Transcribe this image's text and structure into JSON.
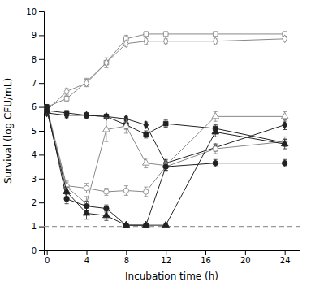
{
  "chart_data": {
    "type": "line",
    "xlabel": "Incubation time (h)",
    "ylabel": "Survival (log CFU/mL)",
    "xlim": [
      -0.3,
      25.5
    ],
    "ylim": [
      0,
      10
    ],
    "xticks": [
      0,
      4,
      8,
      12,
      16,
      20,
      24
    ],
    "yticks": [
      0,
      1,
      2,
      3,
      4,
      5,
      6,
      7,
      8,
      9,
      10
    ],
    "grid": false,
    "detection_limit": 1.0,
    "x": [
      0,
      2,
      4,
      6,
      8,
      10,
      12,
      17,
      24
    ],
    "series": [
      {
        "color": "#888888",
        "marker": "square-open",
        "values": [
          6.0,
          6.35,
          7.05,
          7.85,
          8.85,
          9.05,
          9.05,
          9.05,
          9.05
        ],
        "yerr": [
          0.1,
          0.12,
          0.15,
          0.2,
          0.15,
          0.1,
          0.1,
          0.1,
          0.1
        ]
      },
      {
        "color": "#888888",
        "marker": "diamond-open",
        "values": [
          5.85,
          6.65,
          7.0,
          7.85,
          8.65,
          8.75,
          8.75,
          8.75,
          8.85
        ],
        "yerr": [
          0.1,
          0.12,
          0.15,
          0.2,
          0.12,
          0.12,
          0.1,
          0.1,
          0.1
        ]
      },
      {
        "color": "#222222",
        "marker": "square-filled",
        "values": [
          5.85,
          5.75,
          5.65,
          5.6,
          5.25,
          4.85,
          5.3,
          5.1,
          4.5
        ],
        "yerr": [
          0.1,
          0.1,
          0.1,
          0.1,
          0.18,
          0.15,
          0.15,
          0.15,
          0.15
        ]
      },
      {
        "color": "#222222",
        "marker": "diamond-filled",
        "values": [
          5.75,
          5.65,
          5.65,
          5.6,
          5.5,
          5.25,
          3.65,
          4.3,
          5.25
        ],
        "yerr": [
          0.1,
          0.1,
          0.1,
          0.1,
          0.1,
          0.12,
          0.15,
          0.15,
          0.2
        ]
      },
      {
        "color": "#888888",
        "marker": "triangle-open",
        "values": [
          5.85,
          2.65,
          1.95,
          5.05,
          5.2,
          3.65,
          3.55,
          5.6,
          5.6
        ],
        "yerr": [
          0.15,
          0.2,
          0.3,
          0.5,
          0.3,
          0.2,
          0.2,
          0.2,
          0.2
        ]
      },
      {
        "color": "#888888",
        "marker": "circle-open",
        "values": [
          6.0,
          2.7,
          2.6,
          2.45,
          2.5,
          2.45,
          3.5,
          4.25,
          4.55
        ],
        "yerr": [
          0.1,
          0.2,
          0.2,
          0.15,
          0.2,
          0.2,
          0.2,
          0.2,
          0.2
        ]
      },
      {
        "color": "#222222",
        "marker": "triangle-filled",
        "values": [
          5.85,
          2.45,
          1.55,
          1.45,
          1.05,
          1.05,
          1.05,
          4.95,
          4.45
        ],
        "yerr": [
          0.15,
          0.2,
          0.25,
          0.2,
          0.05,
          0.05,
          0.05,
          0.2,
          0.2
        ]
      },
      {
        "color": "#222222",
        "marker": "circle-filled",
        "values": [
          6.0,
          2.15,
          1.85,
          1.75,
          1.05,
          1.05,
          3.5,
          3.65,
          3.65
        ],
        "yerr": [
          0.1,
          0.2,
          0.2,
          0.15,
          0.05,
          0.05,
          0.15,
          0.15,
          0.15
        ]
      }
    ]
  }
}
